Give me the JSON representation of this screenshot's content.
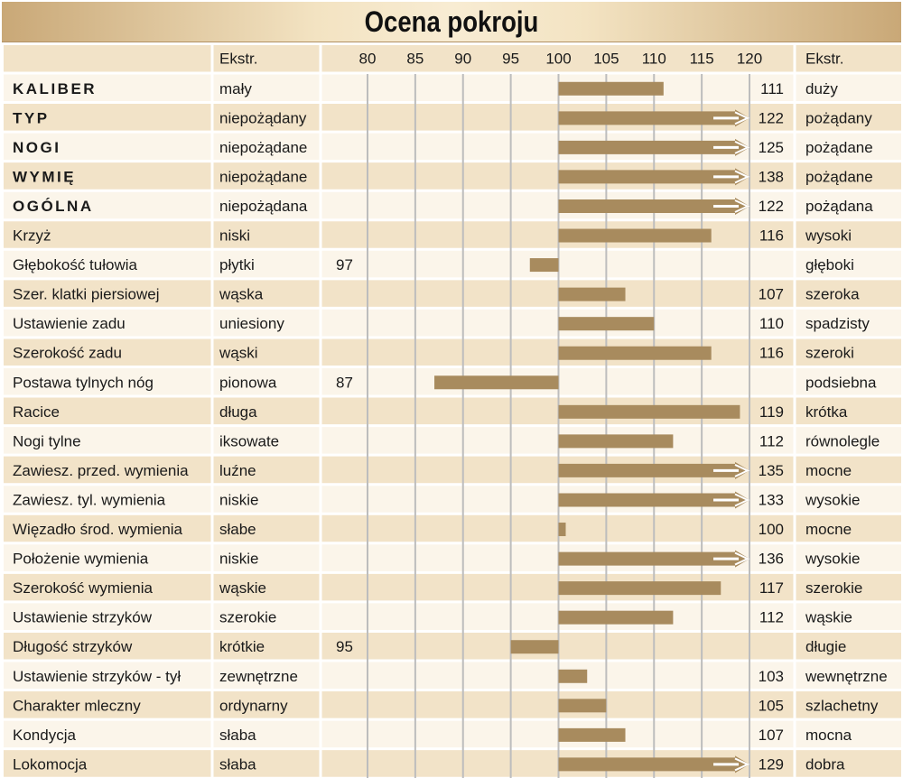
{
  "chart_data": {
    "type": "bar",
    "title": "Ocena pokroju",
    "column_headers": {
      "left": "Ekstr.",
      "right": "Ekstr."
    },
    "xticks": [
      80,
      85,
      90,
      95,
      100,
      105,
      110,
      115,
      120
    ],
    "xlim": [
      80,
      120
    ],
    "baseline": 100,
    "grid": true,
    "rows": [
      {
        "trait": "KALIBER",
        "bold": true,
        "low": "mały",
        "high": "duży",
        "value": 111
      },
      {
        "trait": "TYP",
        "bold": true,
        "low": "niepożądany",
        "high": "pożądany",
        "value": 122
      },
      {
        "trait": "NOGI",
        "bold": true,
        "low": "niepożądane",
        "high": "pożądane",
        "value": 125
      },
      {
        "trait": "WYMIĘ",
        "bold": true,
        "low": "niepożądane",
        "high": "pożądane",
        "value": 138
      },
      {
        "trait": "OGÓLNA",
        "bold": true,
        "low": "niepożądana",
        "high": "pożądana",
        "value": 122
      },
      {
        "trait": "Krzyż",
        "bold": false,
        "low": "niski",
        "high": "wysoki",
        "value": 116
      },
      {
        "trait": "Głębokość tułowia",
        "bold": false,
        "low": "płytki",
        "high": "głęboki",
        "value": 97
      },
      {
        "trait": "Szer. klatki piersiowej",
        "bold": false,
        "low": "wąska",
        "high": "szeroka",
        "value": 107
      },
      {
        "trait": "Ustawienie zadu",
        "bold": false,
        "low": "uniesiony",
        "high": "spadzisty",
        "value": 110
      },
      {
        "trait": "Szerokość zadu",
        "bold": false,
        "low": "wąski",
        "high": "szeroki",
        "value": 116
      },
      {
        "trait": "Postawa tylnych nóg",
        "bold": false,
        "low": "pionowa",
        "high": "podsiebna",
        "value": 87
      },
      {
        "trait": "Racice",
        "bold": false,
        "low": "długa",
        "high": "krótka",
        "value": 119
      },
      {
        "trait": "Nogi tylne",
        "bold": false,
        "low": "iksowate",
        "high": "równolegle",
        "value": 112
      },
      {
        "trait": "Zawiesz. przed. wymienia",
        "bold": false,
        "low": "luźne",
        "high": "mocne",
        "value": 135
      },
      {
        "trait": "Zawiesz. tyl. wymienia",
        "bold": false,
        "low": "niskie",
        "high": "wysokie",
        "value": 133
      },
      {
        "trait": "Więzadło środ. wymienia",
        "bold": false,
        "low": "słabe",
        "high": "mocne",
        "value": 100
      },
      {
        "trait": "Położenie wymienia",
        "bold": false,
        "low": "niskie",
        "high": "wysokie",
        "value": 136
      },
      {
        "trait": "Szerokość wymienia",
        "bold": false,
        "low": "wąskie",
        "high": "szerokie",
        "value": 117
      },
      {
        "trait": "Ustawienie strzyków",
        "bold": false,
        "low": "szerokie",
        "high": "wąskie",
        "value": 112
      },
      {
        "trait": "Długość strzyków",
        "bold": false,
        "low": "krótkie",
        "high": "długie",
        "value": 95
      },
      {
        "trait": "Ustawienie strzyków - tył",
        "bold": false,
        "low": "zewnętrzne",
        "high": "wewnętrzne",
        "value": 103
      },
      {
        "trait": "Charakter mleczny",
        "bold": false,
        "low": "ordynarny",
        "high": "szlachetny",
        "value": 105
      },
      {
        "trait": "Kondycja",
        "bold": false,
        "low": "słaba",
        "high": "mocna",
        "value": 107
      },
      {
        "trait": "Lokomocja",
        "bold": false,
        "low": "słaba",
        "high": "dobra",
        "value": 129
      }
    ]
  },
  "colors": {
    "bar": "#a88b5e",
    "row_a": "#f2e3c8",
    "row_b": "#fbf5ea",
    "grid": "#bdbdbd"
  }
}
